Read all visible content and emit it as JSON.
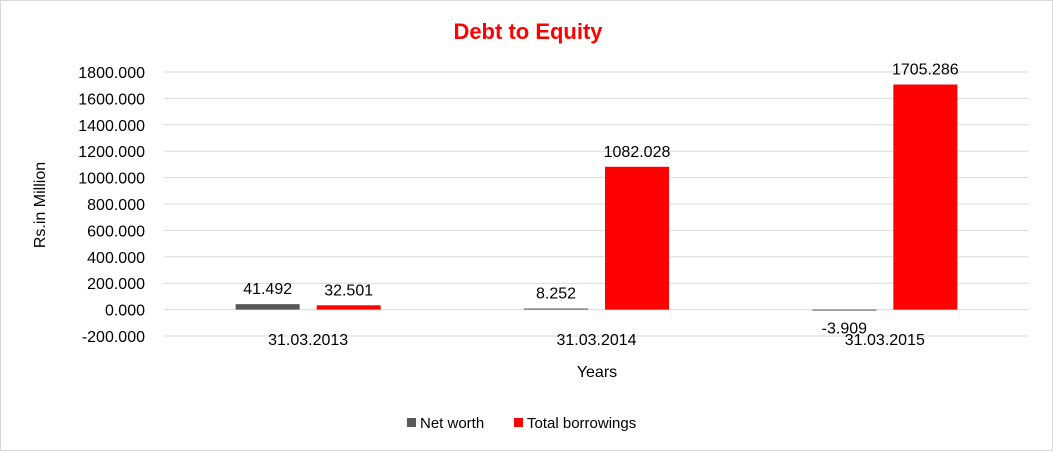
{
  "chart_data": {
    "type": "bar",
    "title": "Debt to Equity",
    "xlabel": "Years",
    "ylabel": "Rs.in Million",
    "categories": [
      "31.03.2013",
      "31.03.2014",
      "31.03.2015"
    ],
    "series": [
      {
        "name": "Net worth",
        "values": [
          41.492,
          8.252,
          -3.909
        ],
        "labels": [
          "41.492",
          "8.252",
          "-3.909"
        ],
        "color": "#595959"
      },
      {
        "name": "Total borrowings",
        "values": [
          32.501,
          1082.028,
          1705.286
        ],
        "labels": [
          "32.501",
          "1082.028",
          "1705.286"
        ],
        "color": "#ff0000"
      }
    ],
    "ylim": [
      -200,
      1800
    ],
    "ytick_step": 200,
    "ytick_labels": [
      "-200.000",
      "0.000",
      "200.000",
      "400.000",
      "600.000",
      "800.000",
      "1000.000",
      "1200.000",
      "1400.000",
      "1600.000",
      "1800.000"
    ],
    "grid": true,
    "legend_position": "bottom",
    "title_color": "#ff0000",
    "gridline_color": "#d9d9d9"
  }
}
